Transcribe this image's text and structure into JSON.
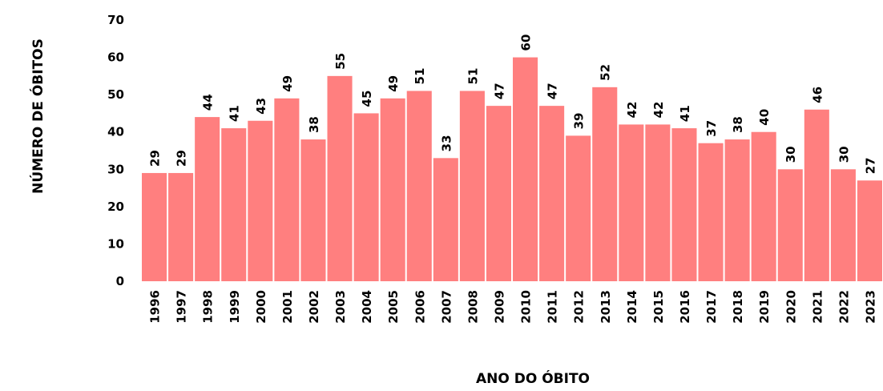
{
  "chart_data": {
    "type": "bar",
    "y_label": "NÚMERO DE ÓBITOS",
    "x_label": "ANO DO ÓBITO",
    "categories": [
      "1996",
      "1997",
      "1998",
      "1999",
      "2000",
      "2001",
      "2002",
      "2003",
      "2004",
      "2005",
      "2006",
      "2007",
      "2008",
      "2009",
      "2010",
      "2011",
      "2012",
      "2013",
      "2014",
      "2015",
      "2016",
      "2017",
      "2018",
      "2019",
      "2020",
      "2021",
      "2022",
      "2023"
    ],
    "values": [
      29,
      29,
      44,
      41,
      43,
      49,
      38,
      55,
      45,
      49,
      51,
      33,
      51,
      47,
      60,
      47,
      39,
      52,
      42,
      42,
      41,
      37,
      38,
      40,
      30,
      46,
      30,
      27
    ],
    "color": "#ff7f7f",
    "ylim": [
      0,
      70
    ],
    "yticks": [
      0,
      10,
      20,
      30,
      40,
      50,
      60,
      70
    ],
    "grid": false
  }
}
